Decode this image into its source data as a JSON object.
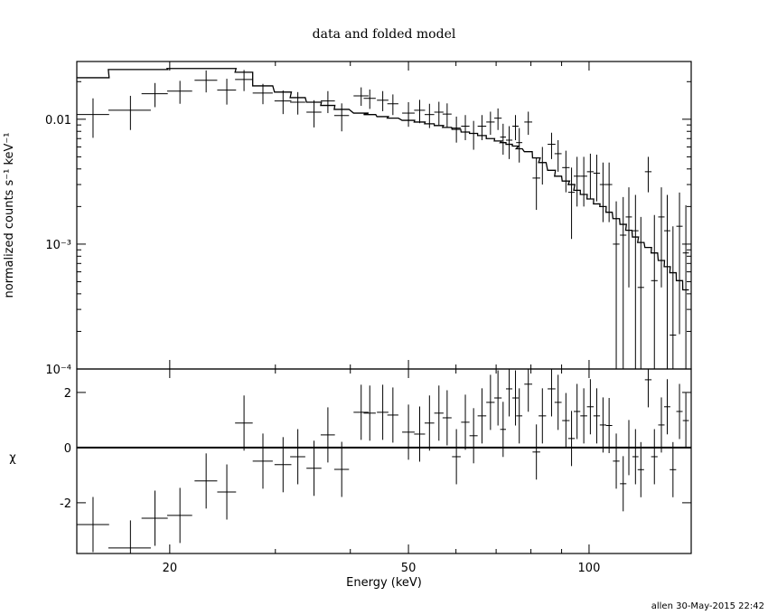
{
  "chart_data": [
    {
      "type": "spectrum",
      "title": "data and folded model",
      "ylabel": "normalized counts s⁻¹ keV⁻¹",
      "xlim": [
        14,
        148
      ],
      "ylim": [
        0.0001,
        0.029
      ],
      "xscale": "log",
      "yscale": "log",
      "yticks": [
        {
          "value": 0.0001,
          "label": "10⁻⁴"
        },
        {
          "value": 0.001,
          "label": "10⁻³"
        },
        0.01
      ],
      "yminorticks": [
        0.0002,
        0.0003,
        0.0004,
        0.0005,
        0.0006,
        0.0007,
        0.0008,
        0.0009,
        0.002,
        0.003,
        0.004,
        0.005,
        0.006,
        0.007,
        0.008,
        0.009,
        0.02
      ],
      "color": "#000000",
      "x": [
        14.9,
        17.2,
        18.9,
        20.8,
        23.0,
        24.9,
        26.6,
        28.6,
        30.9,
        32.7,
        34.8,
        36.7,
        38.7,
        41.7,
        43.1,
        45.3,
        47.1,
        50.0,
        52.2,
        54.2,
        56.2,
        58.0,
        60.1,
        62.2,
        64.2,
        66.3,
        68.5,
        70.5,
        71.9,
        73.6,
        75.4,
        76.5,
        79.2,
        81.7,
        83.6,
        86.6,
        88.8,
        91.5,
        93.5,
        95.5,
        98.0,
        100.5,
        103.0,
        105.5,
        108.0,
        111.0,
        114.0,
        116.5,
        119.5,
        122.0,
        125.5,
        128.5,
        132.0,
        135.0,
        138.0,
        141.5,
        145.0
      ],
      "xerr": [
        0.95,
        1.4,
        0.95,
        1.0,
        1.0,
        0.9,
        0.9,
        1.1,
        1.0,
        0.95,
        1.0,
        1.0,
        1.1,
        1.2,
        1.0,
        1.0,
        1.0,
        1.2,
        1.1,
        1.0,
        1.0,
        1.0,
        1.0,
        1.0,
        1.0,
        1.1,
        1.1,
        1.0,
        0.8,
        0.9,
        0.9,
        0.9,
        1.2,
        1.2,
        1.2,
        1.3,
        1.2,
        1.3,
        1.2,
        1.2,
        1.3,
        1.3,
        1.3,
        1.3,
        1.3,
        1.4,
        1.4,
        1.4,
        1.4,
        1.5,
        1.6,
        1.6,
        1.6,
        1.6,
        1.7,
        1.7,
        1.7
      ],
      "values": [
        0.0109,
        0.0118,
        0.016,
        0.0168,
        0.0205,
        0.0171,
        0.0208,
        0.0162,
        0.014,
        0.0137,
        0.0114,
        0.014,
        0.0107,
        0.0154,
        0.0147,
        0.0142,
        0.0133,
        0.0112,
        0.0118,
        0.0109,
        0.0114,
        0.011,
        0.0085,
        0.0088,
        0.0077,
        0.0088,
        0.0095,
        0.0102,
        0.0072,
        0.0068,
        0.0088,
        0.0065,
        0.0095,
        0.00338,
        0.0045,
        0.0063,
        0.0053,
        0.0041,
        0.0026,
        0.0035,
        0.0035,
        0.0038,
        0.0037,
        0.003,
        0.003,
        0.001,
        0.00118,
        0.00165,
        0.00128,
        0.00045,
        0.0038,
        0.00051,
        0.00165,
        0.00128,
        0.000187,
        0.00139,
        0.00085
      ],
      "errors": [
        0.0038,
        0.0036,
        0.0035,
        0.0035,
        0.0041,
        0.004,
        0.004,
        0.003,
        0.003,
        0.0028,
        0.0028,
        0.0028,
        0.0027,
        0.0026,
        0.0026,
        0.0026,
        0.0025,
        0.0025,
        0.0025,
        0.0024,
        0.0024,
        0.0024,
        0.002,
        0.002,
        0.002,
        0.002,
        0.002,
        0.002,
        0.002,
        0.002,
        0.002,
        0.002,
        0.002,
        0.0015,
        0.0015,
        0.0015,
        0.0015,
        0.0015,
        0.0015,
        0.0015,
        0.0015,
        0.0015,
        0.0015,
        0.0015,
        0.0015,
        0.0012,
        0.0012,
        0.0012,
        0.0012,
        0.0012,
        0.0012,
        0.0012,
        0.0012,
        0.0012,
        0.0012,
        0.0012,
        0.0012
      ],
      "model": [
        0.0215,
        0.025,
        0.025,
        0.0255,
        0.0255,
        0.0255,
        0.0238,
        0.0185,
        0.0165,
        0.0149,
        0.0137,
        0.0129,
        0.012,
        0.0112,
        0.0109,
        0.0105,
        0.0102,
        0.0098,
        0.0095,
        0.0092,
        0.0089,
        0.0086,
        0.0083,
        0.0079,
        0.0077,
        0.0074,
        0.007,
        0.0067,
        0.0065,
        0.0063,
        0.0061,
        0.0058,
        0.0055,
        0.0049,
        0.0045,
        0.0039,
        0.0035,
        0.0032,
        0.003,
        0.0027,
        0.0025,
        0.0023,
        0.0021,
        0.002,
        0.0018,
        0.0016,
        0.00144,
        0.00129,
        0.00114,
        0.00103,
        0.00094,
        0.00085,
        0.00074,
        0.00066,
        0.00059,
        0.00051,
        0.00043
      ]
    },
    {
      "type": "residuals",
      "xlabel": "Energy (keV)",
      "ylabel": "χ",
      "xlim": [
        14,
        148
      ],
      "ylim": [
        -3.84,
        2.85
      ],
      "xscale": "log",
      "xticks": [
        20,
        50,
        100
      ],
      "xminorticks": [
        30,
        40,
        60,
        70,
        80,
        90
      ],
      "yticks": [
        -2,
        0,
        2
      ],
      "color": "#000000",
      "error": 1,
      "reference": 0,
      "reference_color": "#00ff00",
      "values": [
        -2.79,
        -3.64,
        -2.56,
        -2.46,
        -1.21,
        -1.61,
        0.89,
        -0.49,
        -0.62,
        -0.33,
        -0.75,
        0.46,
        -0.79,
        1.28,
        1.25,
        1.28,
        1.18,
        0.56,
        0.49,
        0.89,
        1.25,
        1.08,
        -0.33,
        0.92,
        0.43,
        1.15,
        1.64,
        1.8,
        0.66,
        2.13,
        1.8,
        1.15,
        2.3,
        -0.16,
        1.15,
        2.13,
        1.64,
        0.98,
        0.33,
        1.31,
        1.15,
        1.48,
        1.15,
        0.82,
        0.8,
        -0.49,
        -1.31,
        0,
        -0.33,
        -0.8,
        2.46,
        -0.33,
        0.82,
        1.48,
        -0.8,
        1.31,
        0.98
      ]
    }
  ],
  "footer": "allen 30-May-2015 22:42"
}
